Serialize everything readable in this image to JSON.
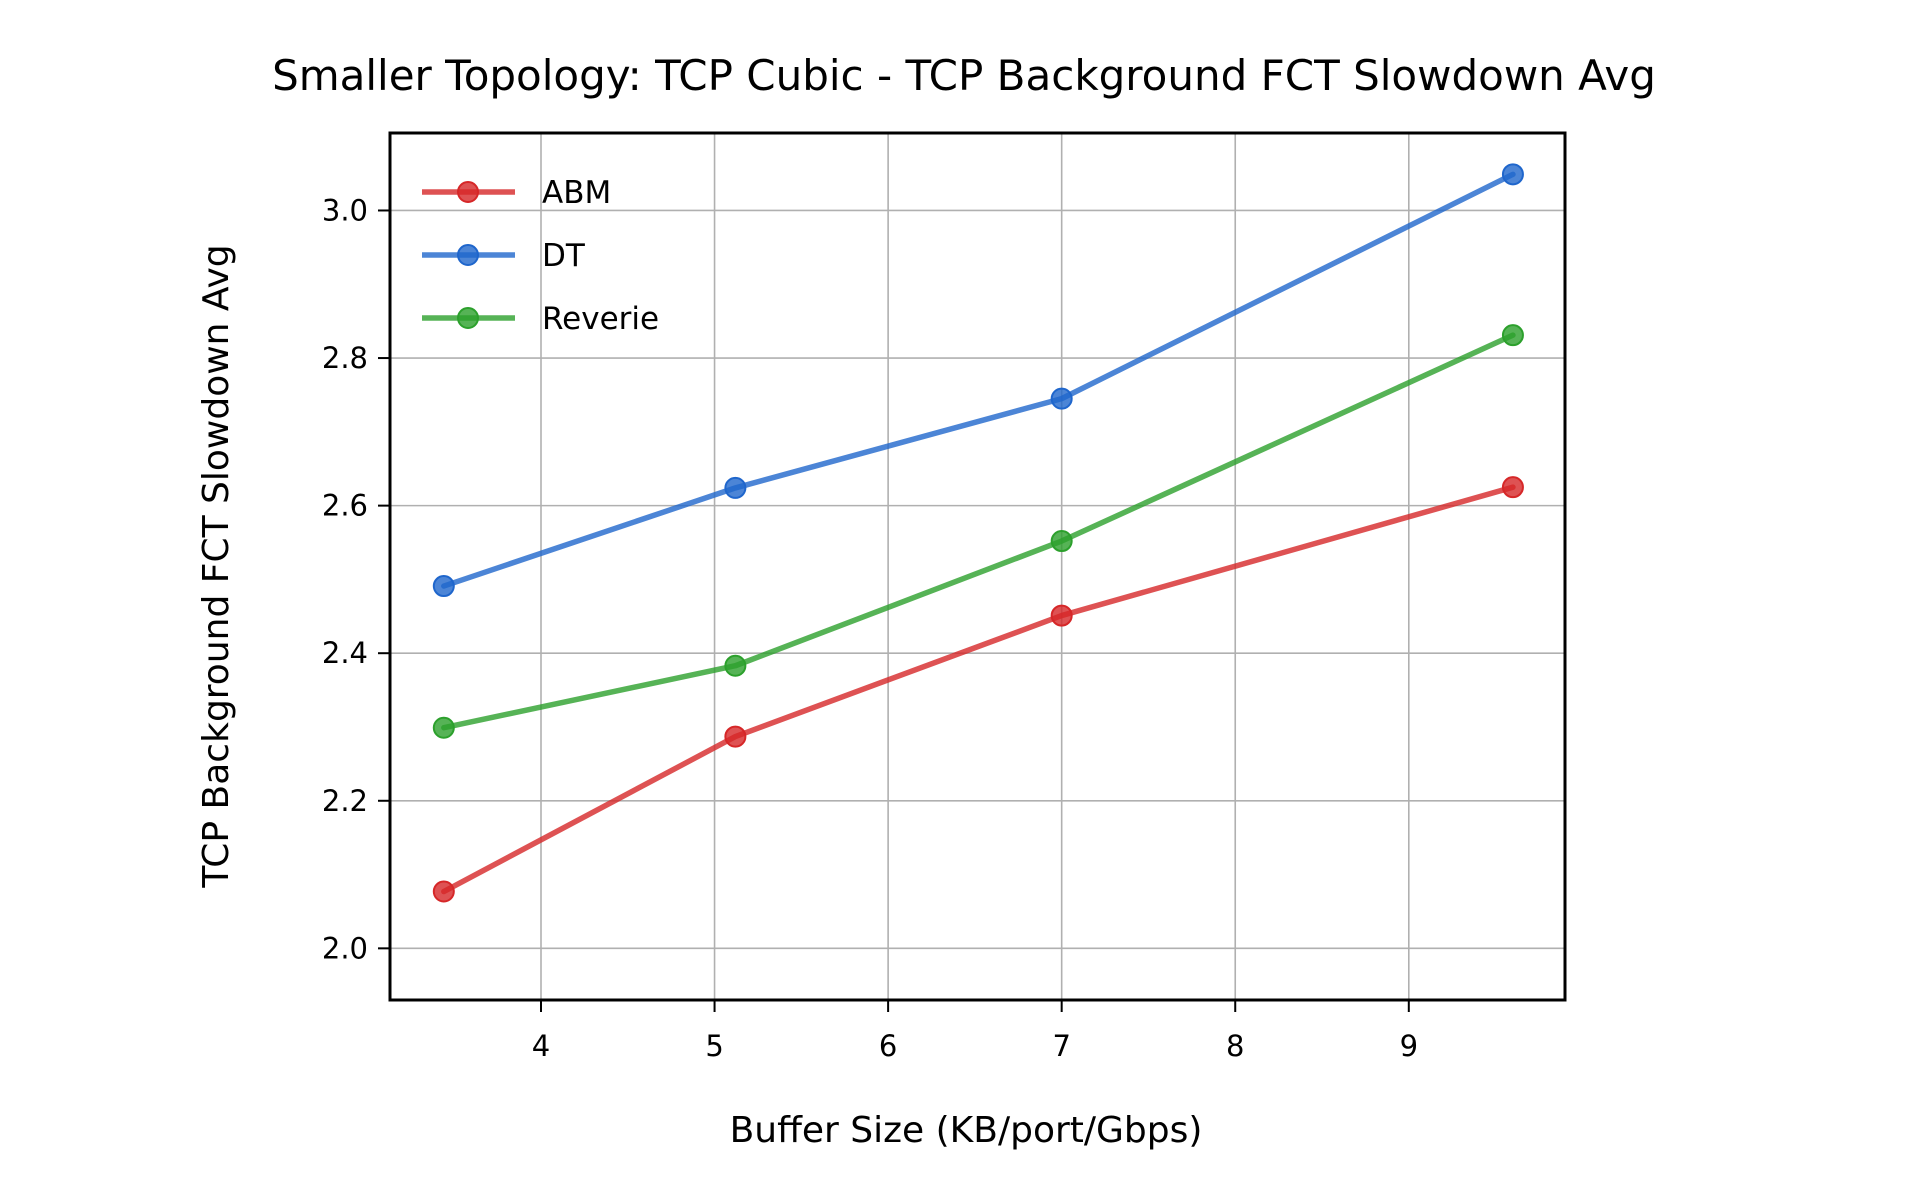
{
  "chart_data": {
    "type": "line",
    "title": "Smaller Topology: TCP Cubic - TCP Background FCT Slowdown Avg",
    "xlabel": "Buffer Size (KB/port/Gbps)",
    "ylabel": "TCP Background FCT Slowdown Avg",
    "xlim": [
      3.13,
      9.9
    ],
    "ylim": [
      1.93,
      3.105
    ],
    "xticks": [
      4,
      5,
      6,
      7,
      8,
      9
    ],
    "yticks": [
      2.0,
      2.2,
      2.4,
      2.6,
      2.8,
      3.0
    ],
    "xtick_labels": [
      "4",
      "5",
      "6",
      "7",
      "8",
      "9"
    ],
    "ytick_labels": [
      "2.0",
      "2.2",
      "2.4",
      "2.6",
      "2.8",
      "3.0"
    ],
    "grid": true,
    "legend_position": "top-left",
    "x": [
      3.44,
      5.12,
      7.0,
      9.6
    ],
    "series": [
      {
        "name": "ABM",
        "color": "#d62728",
        "values": [
          2.077,
          2.287,
          2.451,
          2.625
        ]
      },
      {
        "name": "DT",
        "color": "#1f66cc",
        "values": [
          2.491,
          2.624,
          2.745,
          3.049
        ]
      },
      {
        "name": "Reverie",
        "color": "#2ca02c",
        "values": [
          2.299,
          2.383,
          2.552,
          2.831
        ]
      }
    ]
  }
}
